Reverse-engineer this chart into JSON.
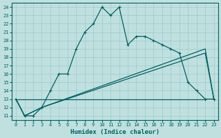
{
  "xlabel": "Humidex (Indice chaleur)",
  "bg_color": "#c0e0e0",
  "line_color": "#006060",
  "grid_color": "#a0cccc",
  "xlim": [
    -0.5,
    23.5
  ],
  "ylim": [
    10.5,
    24.5
  ],
  "xticks": [
    0,
    1,
    2,
    3,
    4,
    5,
    6,
    7,
    8,
    9,
    10,
    11,
    12,
    13,
    14,
    15,
    16,
    17,
    18,
    19,
    20,
    21,
    22,
    23
  ],
  "yticks": [
    11,
    12,
    13,
    14,
    15,
    16,
    17,
    18,
    19,
    20,
    21,
    22,
    23,
    24
  ],
  "main_x": [
    0,
    1,
    2,
    3,
    4,
    5,
    6,
    7,
    8,
    9,
    10,
    11,
    12,
    13,
    14,
    15,
    16,
    17,
    18,
    19,
    20,
    21,
    22,
    23
  ],
  "main_y": [
    13,
    11,
    11,
    12,
    14,
    16,
    16,
    19,
    21,
    22,
    24,
    23,
    24,
    19.5,
    20.5,
    20.5,
    20,
    19.5,
    19,
    18.5,
    15,
    14,
    13,
    13
  ],
  "line2_x": [
    0,
    1,
    3,
    22,
    23
  ],
  "line2_y": [
    13,
    11,
    12,
    18.5,
    13
  ],
  "line3_x": [
    0,
    1,
    3,
    22,
    23
  ],
  "line3_y": [
    13,
    11,
    12,
    19,
    13
  ],
  "hline_x": [
    0,
    22
  ],
  "hline_y": [
    13,
    13
  ]
}
